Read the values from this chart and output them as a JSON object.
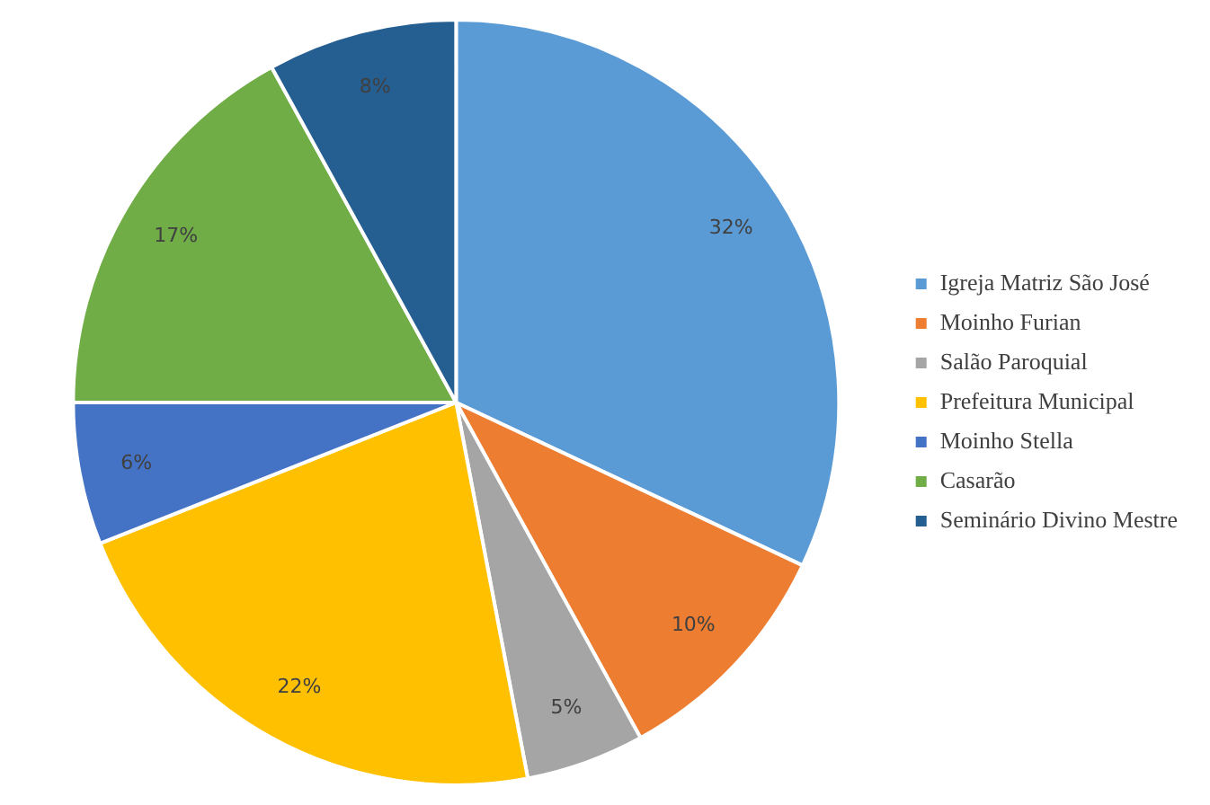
{
  "chart_data": {
    "type": "pie",
    "categories": [
      "Igreja Matriz São José",
      "Moinho Furian",
      "Salão Paroquial",
      "Prefeitura Municipal",
      "Moinho Stella",
      "Casarão",
      "Seminário Divino Mestre"
    ],
    "values": [
      32,
      10,
      5,
      22,
      6,
      17,
      8
    ],
    "colors": [
      "#5b9bd5",
      "#ed7d31",
      "#a5a5a5",
      "#ffc000",
      "#4472c4",
      "#70ad47",
      "#255e91"
    ],
    "value_labels": [
      "32%",
      "10%",
      "5%",
      "22%",
      "6%",
      "17%",
      "8%"
    ],
    "legend": "right"
  }
}
